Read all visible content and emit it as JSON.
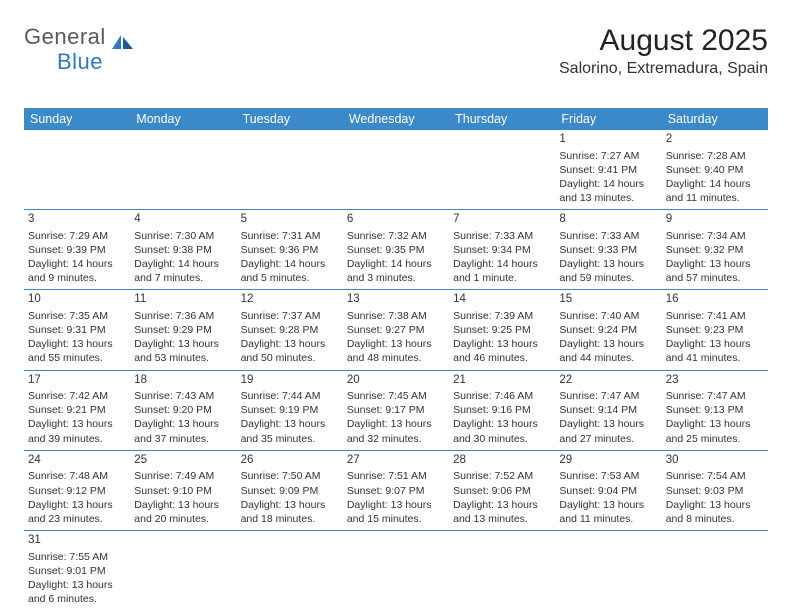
{
  "logo": {
    "general": "General",
    "blue": "Blue"
  },
  "title": "August 2025",
  "location": "Salorino, Extremadura, Spain",
  "colors": {
    "header_bg": "#3b89c9",
    "header_text": "#ffffff",
    "cell_border": "#3b89c9",
    "text": "#333333",
    "logo_general": "#5a5a5a",
    "logo_blue": "#2f78bf"
  },
  "typography": {
    "title_fontsize": 30,
    "location_fontsize": 16,
    "dayheader_fontsize": 12.5,
    "cell_fontsize": 10.5,
    "logo_fontsize": 22
  },
  "day_headers": [
    "Sunday",
    "Monday",
    "Tuesday",
    "Wednesday",
    "Thursday",
    "Friday",
    "Saturday"
  ],
  "weeks": [
    [
      null,
      null,
      null,
      null,
      null,
      {
        "n": "1",
        "sunrise": "Sunrise: 7:27 AM",
        "sunset": "Sunset: 9:41 PM",
        "daylight1": "Daylight: 14 hours",
        "daylight2": "and 13 minutes."
      },
      {
        "n": "2",
        "sunrise": "Sunrise: 7:28 AM",
        "sunset": "Sunset: 9:40 PM",
        "daylight1": "Daylight: 14 hours",
        "daylight2": "and 11 minutes."
      }
    ],
    [
      {
        "n": "3",
        "sunrise": "Sunrise: 7:29 AM",
        "sunset": "Sunset: 9:39 PM",
        "daylight1": "Daylight: 14 hours",
        "daylight2": "and 9 minutes."
      },
      {
        "n": "4",
        "sunrise": "Sunrise: 7:30 AM",
        "sunset": "Sunset: 9:38 PM",
        "daylight1": "Daylight: 14 hours",
        "daylight2": "and 7 minutes."
      },
      {
        "n": "5",
        "sunrise": "Sunrise: 7:31 AM",
        "sunset": "Sunset: 9:36 PM",
        "daylight1": "Daylight: 14 hours",
        "daylight2": "and 5 minutes."
      },
      {
        "n": "6",
        "sunrise": "Sunrise: 7:32 AM",
        "sunset": "Sunset: 9:35 PM",
        "daylight1": "Daylight: 14 hours",
        "daylight2": "and 3 minutes."
      },
      {
        "n": "7",
        "sunrise": "Sunrise: 7:33 AM",
        "sunset": "Sunset: 9:34 PM",
        "daylight1": "Daylight: 14 hours",
        "daylight2": "and 1 minute."
      },
      {
        "n": "8",
        "sunrise": "Sunrise: 7:33 AM",
        "sunset": "Sunset: 9:33 PM",
        "daylight1": "Daylight: 13 hours",
        "daylight2": "and 59 minutes."
      },
      {
        "n": "9",
        "sunrise": "Sunrise: 7:34 AM",
        "sunset": "Sunset: 9:32 PM",
        "daylight1": "Daylight: 13 hours",
        "daylight2": "and 57 minutes."
      }
    ],
    [
      {
        "n": "10",
        "sunrise": "Sunrise: 7:35 AM",
        "sunset": "Sunset: 9:31 PM",
        "daylight1": "Daylight: 13 hours",
        "daylight2": "and 55 minutes."
      },
      {
        "n": "11",
        "sunrise": "Sunrise: 7:36 AM",
        "sunset": "Sunset: 9:29 PM",
        "daylight1": "Daylight: 13 hours",
        "daylight2": "and 53 minutes."
      },
      {
        "n": "12",
        "sunrise": "Sunrise: 7:37 AM",
        "sunset": "Sunset: 9:28 PM",
        "daylight1": "Daylight: 13 hours",
        "daylight2": "and 50 minutes."
      },
      {
        "n": "13",
        "sunrise": "Sunrise: 7:38 AM",
        "sunset": "Sunset: 9:27 PM",
        "daylight1": "Daylight: 13 hours",
        "daylight2": "and 48 minutes."
      },
      {
        "n": "14",
        "sunrise": "Sunrise: 7:39 AM",
        "sunset": "Sunset: 9:25 PM",
        "daylight1": "Daylight: 13 hours",
        "daylight2": "and 46 minutes."
      },
      {
        "n": "15",
        "sunrise": "Sunrise: 7:40 AM",
        "sunset": "Sunset: 9:24 PM",
        "daylight1": "Daylight: 13 hours",
        "daylight2": "and 44 minutes."
      },
      {
        "n": "16",
        "sunrise": "Sunrise: 7:41 AM",
        "sunset": "Sunset: 9:23 PM",
        "daylight1": "Daylight: 13 hours",
        "daylight2": "and 41 minutes."
      }
    ],
    [
      {
        "n": "17",
        "sunrise": "Sunrise: 7:42 AM",
        "sunset": "Sunset: 9:21 PM",
        "daylight1": "Daylight: 13 hours",
        "daylight2": "and 39 minutes."
      },
      {
        "n": "18",
        "sunrise": "Sunrise: 7:43 AM",
        "sunset": "Sunset: 9:20 PM",
        "daylight1": "Daylight: 13 hours",
        "daylight2": "and 37 minutes."
      },
      {
        "n": "19",
        "sunrise": "Sunrise: 7:44 AM",
        "sunset": "Sunset: 9:19 PM",
        "daylight1": "Daylight: 13 hours",
        "daylight2": "and 35 minutes."
      },
      {
        "n": "20",
        "sunrise": "Sunrise: 7:45 AM",
        "sunset": "Sunset: 9:17 PM",
        "daylight1": "Daylight: 13 hours",
        "daylight2": "and 32 minutes."
      },
      {
        "n": "21",
        "sunrise": "Sunrise: 7:46 AM",
        "sunset": "Sunset: 9:16 PM",
        "daylight1": "Daylight: 13 hours",
        "daylight2": "and 30 minutes."
      },
      {
        "n": "22",
        "sunrise": "Sunrise: 7:47 AM",
        "sunset": "Sunset: 9:14 PM",
        "daylight1": "Daylight: 13 hours",
        "daylight2": "and 27 minutes."
      },
      {
        "n": "23",
        "sunrise": "Sunrise: 7:47 AM",
        "sunset": "Sunset: 9:13 PM",
        "daylight1": "Daylight: 13 hours",
        "daylight2": "and 25 minutes."
      }
    ],
    [
      {
        "n": "24",
        "sunrise": "Sunrise: 7:48 AM",
        "sunset": "Sunset: 9:12 PM",
        "daylight1": "Daylight: 13 hours",
        "daylight2": "and 23 minutes."
      },
      {
        "n": "25",
        "sunrise": "Sunrise: 7:49 AM",
        "sunset": "Sunset: 9:10 PM",
        "daylight1": "Daylight: 13 hours",
        "daylight2": "and 20 minutes."
      },
      {
        "n": "26",
        "sunrise": "Sunrise: 7:50 AM",
        "sunset": "Sunset: 9:09 PM",
        "daylight1": "Daylight: 13 hours",
        "daylight2": "and 18 minutes."
      },
      {
        "n": "27",
        "sunrise": "Sunrise: 7:51 AM",
        "sunset": "Sunset: 9:07 PM",
        "daylight1": "Daylight: 13 hours",
        "daylight2": "and 15 minutes."
      },
      {
        "n": "28",
        "sunrise": "Sunrise: 7:52 AM",
        "sunset": "Sunset: 9:06 PM",
        "daylight1": "Daylight: 13 hours",
        "daylight2": "and 13 minutes."
      },
      {
        "n": "29",
        "sunrise": "Sunrise: 7:53 AM",
        "sunset": "Sunset: 9:04 PM",
        "daylight1": "Daylight: 13 hours",
        "daylight2": "and 11 minutes."
      },
      {
        "n": "30",
        "sunrise": "Sunrise: 7:54 AM",
        "sunset": "Sunset: 9:03 PM",
        "daylight1": "Daylight: 13 hours",
        "daylight2": "and 8 minutes."
      }
    ],
    [
      {
        "n": "31",
        "sunrise": "Sunrise: 7:55 AM",
        "sunset": "Sunset: 9:01 PM",
        "daylight1": "Daylight: 13 hours",
        "daylight2": "and 6 minutes."
      },
      null,
      null,
      null,
      null,
      null,
      null
    ]
  ]
}
